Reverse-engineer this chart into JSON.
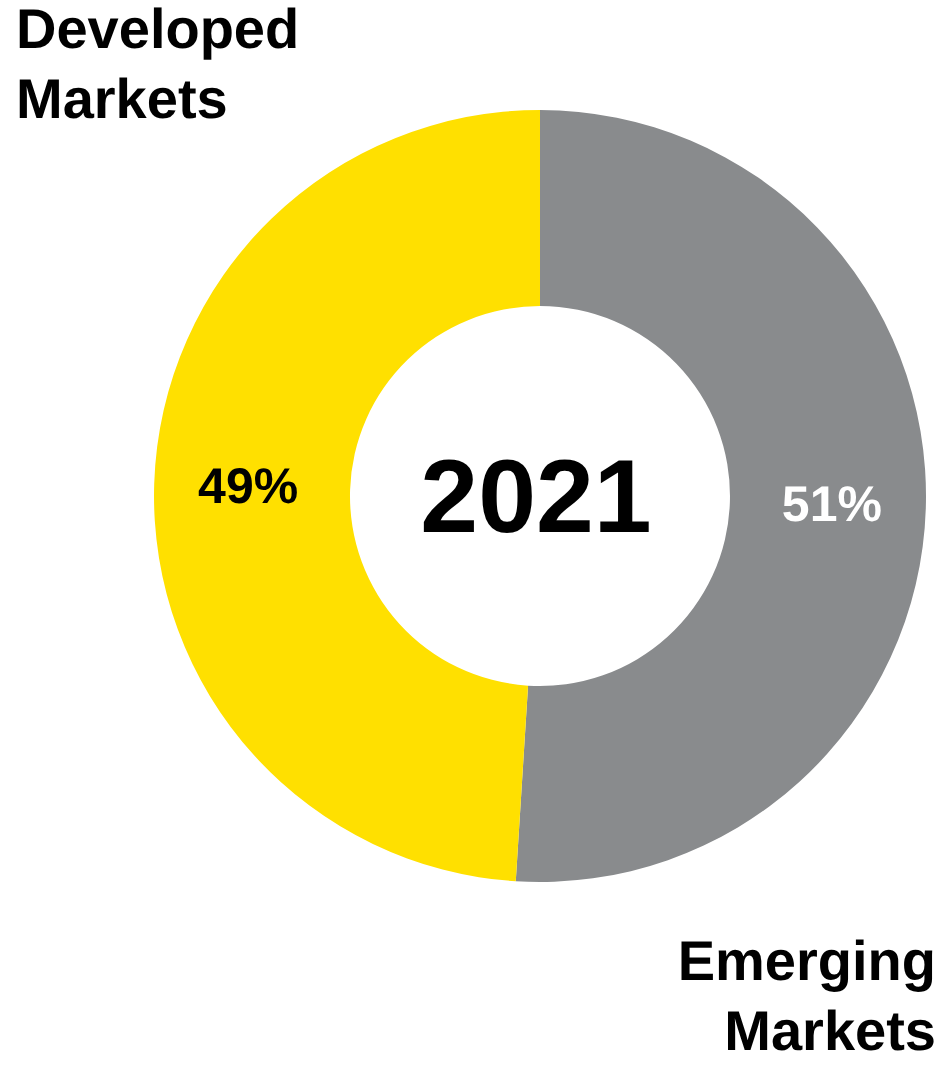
{
  "chart_data": {
    "type": "donut",
    "title": "2021",
    "categories": [
      "Emerging Markets",
      "Developed Markets"
    ],
    "values": [
      51,
      49
    ],
    "colors": [
      "#898b8d",
      "#ffe000"
    ],
    "value_labels": [
      "51%",
      "49%"
    ]
  }
}
